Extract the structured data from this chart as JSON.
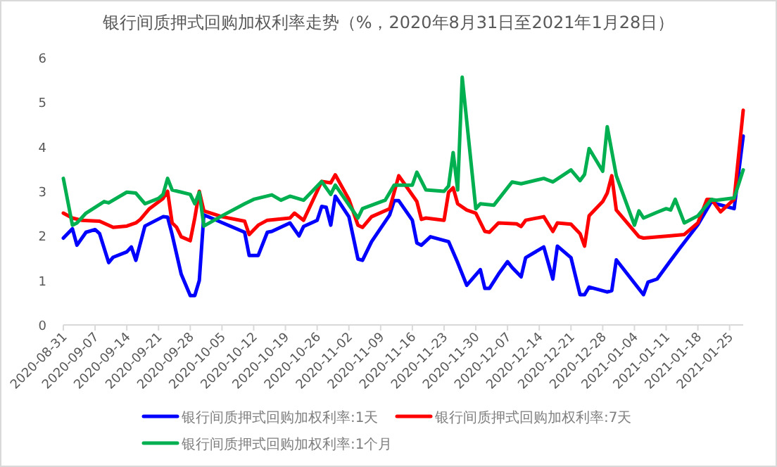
{
  "chart_data": {
    "type": "line",
    "title": "银行间质押式回购加权利率走势（%，2020年8月31日至2021年1月28日）",
    "xlim": [
      "2020-08-31",
      "2021-01-28"
    ],
    "xticks": [
      "2020-08-31",
      "2020-09-07",
      "2020-09-14",
      "2020-09-21",
      "2020-09-28",
      "2020-10-05",
      "2020-10-12",
      "2020-10-19",
      "2020-10-26",
      "2020-11-02",
      "2020-11-09",
      "2020-11-16",
      "2020-11-23",
      "2020-11-30",
      "2020-12-07",
      "2020-12-14",
      "2020-12-21",
      "2020-12-28",
      "2021-01-04",
      "2021-01-11",
      "2021-01-18",
      "2021-01-25"
    ],
    "ylim": [
      0,
      6
    ],
    "yticks": [
      0,
      1,
      2,
      3,
      4,
      5,
      6
    ],
    "grid": false,
    "legend": "bottom",
    "marker": "none",
    "line_style": "solid",
    "series": [
      {
        "name": "银行间质押式回购加权利率:1天",
        "color": "#0000ff",
        "x": [
          "2020-08-31",
          "2020-09-02",
          "2020-09-03",
          "2020-09-05",
          "2020-09-07",
          "2020-09-08",
          "2020-09-10",
          "2020-09-11",
          "2020-09-14",
          "2020-09-15",
          "2020-09-16",
          "2020-09-18",
          "2020-09-22",
          "2020-09-23",
          "2020-09-24",
          "2020-09-26",
          "2020-09-28",
          "2020-09-29",
          "2020-09-30",
          "2020-10-01",
          "2020-10-10",
          "2020-10-11",
          "2020-10-13",
          "2020-10-15",
          "2020-10-16",
          "2020-10-20",
          "2020-10-22",
          "2020-10-23",
          "2020-10-26",
          "2020-10-27",
          "2020-10-28",
          "2020-10-29",
          "2020-10-30",
          "2020-11-02",
          "2020-11-04",
          "2020-11-05",
          "2020-11-07",
          "2020-11-11",
          "2020-11-12",
          "2020-11-13",
          "2020-11-16",
          "2020-11-17",
          "2020-11-18",
          "2020-11-20",
          "2020-11-24",
          "2020-11-26",
          "2020-11-28",
          "2020-12-01",
          "2020-12-02",
          "2020-12-03",
          "2020-12-05",
          "2020-12-07",
          "2020-12-08",
          "2020-12-10",
          "2020-12-11",
          "2020-12-15",
          "2020-12-17",
          "2020-12-18",
          "2020-12-21",
          "2020-12-23",
          "2020-12-24",
          "2020-12-25",
          "2020-12-29",
          "2020-12-30",
          "2020-12-31",
          "2021-01-06",
          "2021-01-07",
          "2021-01-09",
          "2021-01-12",
          "2021-01-14",
          "2021-01-18",
          "2021-01-21",
          "2021-01-22",
          "2021-01-26",
          "2021-01-28"
        ],
        "values": [
          1.95,
          2.16,
          1.79,
          2.08,
          2.14,
          2.05,
          1.4,
          1.52,
          1.64,
          1.75,
          1.45,
          2.22,
          2.43,
          2.42,
          2.03,
          1.14,
          0.66,
          0.66,
          1.0,
          2.47,
          2.08,
          1.56,
          1.56,
          2.08,
          2.1,
          2.29,
          2.0,
          2.21,
          2.35,
          2.66,
          2.64,
          2.24,
          2.89,
          2.43,
          1.48,
          1.45,
          1.87,
          2.47,
          2.79,
          2.79,
          2.35,
          1.84,
          1.79,
          1.98,
          1.87,
          1.4,
          0.89,
          1.24,
          0.82,
          0.82,
          1.14,
          1.42,
          1.29,
          1.08,
          1.51,
          1.75,
          1.03,
          1.77,
          1.51,
          0.68,
          0.68,
          0.85,
          0.74,
          0.77,
          1.46,
          0.68,
          0.96,
          1.03,
          1.45,
          1.72,
          2.25,
          2.77,
          2.72,
          2.61,
          4.24
        ]
      },
      {
        "name": "银行间质押式回购加权利率:7天",
        "color": "#ff0000",
        "x": [
          "2020-08-31",
          "2020-09-02",
          "2020-09-04",
          "2020-09-08",
          "2020-09-11",
          "2020-09-14",
          "2020-09-16",
          "2020-09-17",
          "2020-09-19",
          "2020-09-22",
          "2020-09-23",
          "2020-09-24",
          "2020-09-25",
          "2020-09-26",
          "2020-09-28",
          "2020-09-29",
          "2020-09-30",
          "2020-10-01",
          "2020-10-05",
          "2020-10-10",
          "2020-10-11",
          "2020-10-13",
          "2020-10-15",
          "2020-10-20",
          "2020-10-21",
          "2020-10-23",
          "2020-10-27",
          "2020-10-29",
          "2020-10-30",
          "2020-11-02",
          "2020-11-04",
          "2020-11-05",
          "2020-11-07",
          "2020-11-11",
          "2020-11-13",
          "2020-11-17",
          "2020-11-18",
          "2020-11-19",
          "2020-11-23",
          "2020-11-24",
          "2020-11-25",
          "2020-11-26",
          "2020-11-28",
          "2020-11-30",
          "2020-12-02",
          "2020-12-03",
          "2020-12-05",
          "2020-12-09",
          "2020-12-10",
          "2020-12-11",
          "2020-12-15",
          "2020-12-17",
          "2020-12-18",
          "2020-12-21",
          "2020-12-23",
          "2020-12-24",
          "2020-12-25",
          "2020-12-28",
          "2020-12-29",
          "2020-12-30",
          "2020-12-31",
          "2021-01-05",
          "2021-01-06",
          "2021-01-12",
          "2021-01-15",
          "2021-01-18",
          "2021-01-20",
          "2021-01-21",
          "2021-01-23",
          "2021-01-26",
          "2021-01-28"
        ],
        "values": [
          2.51,
          2.4,
          2.35,
          2.33,
          2.19,
          2.22,
          2.29,
          2.37,
          2.61,
          2.84,
          3.0,
          2.29,
          2.19,
          1.98,
          1.89,
          2.4,
          3.0,
          2.56,
          2.43,
          2.33,
          2.03,
          2.24,
          2.35,
          2.4,
          2.51,
          2.35,
          3.22,
          3.19,
          3.37,
          2.82,
          2.24,
          2.19,
          2.43,
          2.61,
          3.35,
          2.77,
          2.37,
          2.4,
          2.35,
          2.98,
          3.08,
          2.72,
          2.58,
          2.51,
          2.1,
          2.08,
          2.29,
          2.27,
          2.21,
          2.35,
          2.43,
          2.1,
          2.29,
          2.26,
          2.05,
          1.77,
          2.45,
          2.77,
          2.96,
          3.35,
          2.58,
          1.98,
          1.95,
          2.0,
          2.03,
          2.29,
          2.82,
          2.82,
          2.54,
          2.82,
          4.82
        ]
      },
      {
        "name": "银行间质押式回购加权利率:1个月",
        "color": "#00b050",
        "x": [
          "2020-08-31",
          "2020-09-02",
          "2020-09-03",
          "2020-09-05",
          "2020-09-09",
          "2020-09-10",
          "2020-09-14",
          "2020-09-16",
          "2020-09-18",
          "2020-09-21",
          "2020-09-22",
          "2020-09-23",
          "2020-09-24",
          "2020-09-28",
          "2020-09-29",
          "2020-09-30",
          "2020-10-01",
          "2020-10-05",
          "2020-10-10",
          "2020-10-12",
          "2020-10-16",
          "2020-10-18",
          "2020-10-20",
          "2020-10-23",
          "2020-10-27",
          "2020-10-29",
          "2020-10-30",
          "2020-11-04",
          "2020-11-05",
          "2020-11-10",
          "2020-11-12",
          "2020-11-16",
          "2020-11-17",
          "2020-11-19",
          "2020-11-23",
          "2020-11-24",
          "2020-11-25",
          "2020-11-26",
          "2020-11-27",
          "2020-11-30",
          "2020-12-01",
          "2020-12-04",
          "2020-12-08",
          "2020-12-10",
          "2020-12-15",
          "2020-12-17",
          "2020-12-21",
          "2020-12-23",
          "2020-12-24",
          "2020-12-25",
          "2020-12-28",
          "2020-12-29",
          "2020-12-31",
          "2021-01-04",
          "2021-01-05",
          "2021-01-06",
          "2021-01-09",
          "2021-01-11",
          "2021-01-12",
          "2021-01-13",
          "2021-01-15",
          "2021-01-18",
          "2021-01-21",
          "2021-01-22",
          "2021-01-26",
          "2021-01-28"
        ],
        "values": [
          3.29,
          2.24,
          2.29,
          2.51,
          2.77,
          2.74,
          2.98,
          2.96,
          2.72,
          2.84,
          2.93,
          3.29,
          3.03,
          2.93,
          2.72,
          2.98,
          2.22,
          2.45,
          2.72,
          2.82,
          2.92,
          2.8,
          2.89,
          2.8,
          3.22,
          2.93,
          3.14,
          2.4,
          2.61,
          2.8,
          3.14,
          3.14,
          3.43,
          3.03,
          3.0,
          3.12,
          3.87,
          3.03,
          5.56,
          2.61,
          2.72,
          2.69,
          3.21,
          3.17,
          3.29,
          3.21,
          3.48,
          3.24,
          3.38,
          3.96,
          3.45,
          4.45,
          3.35,
          2.24,
          2.56,
          2.4,
          2.53,
          2.61,
          2.58,
          2.82,
          2.29,
          2.45,
          2.82,
          2.8,
          2.85,
          3.48
        ]
      }
    ]
  }
}
